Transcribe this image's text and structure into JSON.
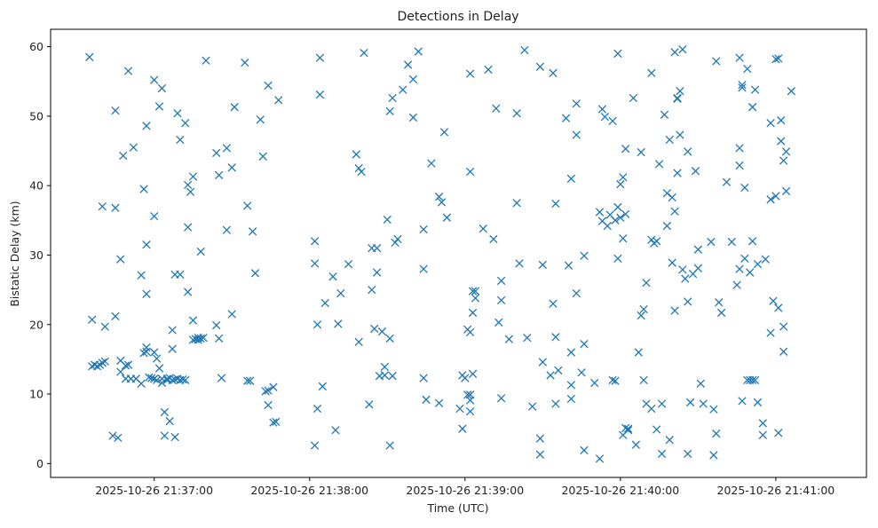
{
  "chart_data": {
    "type": "scatter",
    "title": "Detections in Delay",
    "xlabel": "Time (UTC)",
    "ylabel": "Bistatic Delay (km)",
    "marker": "x",
    "marker_color": "#1f77b4",
    "grid": false,
    "x_unit": "UTC time",
    "xlim": [
      "2025-10-26 21:36:20",
      "2025-10-26 21:41:35"
    ],
    "ylim": [
      -2,
      62.5
    ],
    "xticks": [
      "2025-10-26 21:37:00",
      "2025-10-26 21:38:00",
      "2025-10-26 21:39:00",
      "2025-10-26 21:40:00",
      "2025-10-26 21:41:00"
    ],
    "yticks": [
      0,
      10,
      20,
      30,
      40,
      50,
      60
    ],
    "points": [
      [
        "21:36:35",
        58.5
      ],
      [
        "21:36:36",
        14.0
      ],
      [
        "21:36:36",
        20.7
      ],
      [
        "21:36:37",
        14.2
      ],
      [
        "21:36:38",
        14.0
      ],
      [
        "21:36:39",
        14.2
      ],
      [
        "21:36:40",
        37.0
      ],
      [
        "21:36:40",
        14.5
      ],
      [
        "21:36:41",
        14.7
      ],
      [
        "21:36:41",
        19.7
      ],
      [
        "21:36:44",
        4.0
      ],
      [
        "21:36:45",
        21.2
      ],
      [
        "21:36:45",
        50.8
      ],
      [
        "21:36:45",
        36.8
      ],
      [
        "21:36:46",
        3.7
      ],
      [
        "21:36:47",
        14.8
      ],
      [
        "21:36:47",
        13.2
      ],
      [
        "21:36:47",
        29.4
      ],
      [
        "21:36:48",
        44.3
      ],
      [
        "21:36:49",
        14.1
      ],
      [
        "21:36:49",
        12.2
      ],
      [
        "21:36:50",
        14.2
      ],
      [
        "21:36:50",
        56.5
      ],
      [
        "21:36:51",
        12.2
      ],
      [
        "21:36:52",
        45.5
      ],
      [
        "21:36:53",
        12.2
      ],
      [
        "21:36:55",
        27.1
      ],
      [
        "21:36:55",
        11.5
      ],
      [
        "21:36:56",
        39.5
      ],
      [
        "21:36:56",
        15.9
      ],
      [
        "21:36:57",
        16.7
      ],
      [
        "21:36:57",
        16.1
      ],
      [
        "21:36:57",
        48.6
      ],
      [
        "21:36:57",
        31.5
      ],
      [
        "21:36:57",
        24.4
      ],
      [
        "21:36:58",
        12.4
      ],
      [
        "21:36:59",
        12.3
      ],
      [
        "21:37:00",
        12.2
      ],
      [
        "21:37:00",
        16.0
      ],
      [
        "21:37:00",
        35.6
      ],
      [
        "21:37:00",
        55.2
      ],
      [
        "21:37:01",
        12.0
      ],
      [
        "21:37:01",
        15.1
      ],
      [
        "21:37:02",
        51.4
      ],
      [
        "21:37:02",
        13.7
      ],
      [
        "21:37:03",
        54.0
      ],
      [
        "21:37:03",
        12.2
      ],
      [
        "21:37:03",
        11.6
      ],
      [
        "21:37:04",
        4.0
      ],
      [
        "21:37:04",
        7.4
      ],
      [
        "21:37:05",
        12.0
      ],
      [
        "21:37:05",
        12.2
      ],
      [
        "21:37:06",
        6.1
      ],
      [
        "21:37:06",
        12.3
      ],
      [
        "21:37:07",
        12.0
      ],
      [
        "21:37:07",
        16.5
      ],
      [
        "21:37:07",
        19.2
      ],
      [
        "21:37:08",
        12.1
      ],
      [
        "21:37:08",
        3.8
      ],
      [
        "21:37:08",
        27.2
      ],
      [
        "21:37:09",
        12.2
      ],
      [
        "21:37:09",
        50.4
      ],
      [
        "21:37:10",
        12.0
      ],
      [
        "21:37:10",
        46.6
      ],
      [
        "21:37:10",
        27.2
      ],
      [
        "21:37:11",
        12.1
      ],
      [
        "21:37:12",
        12.0
      ],
      [
        "21:37:12",
        49.0
      ],
      [
        "21:37:13",
        24.7
      ],
      [
        "21:37:13",
        34.0
      ],
      [
        "21:37:13",
        40.1
      ],
      [
        "21:37:14",
        39.1
      ],
      [
        "21:37:15",
        17.8
      ],
      [
        "21:37:15",
        20.6
      ],
      [
        "21:37:15",
        41.3
      ],
      [
        "21:37:16",
        17.9
      ],
      [
        "21:37:17",
        17.8
      ],
      [
        "21:37:17",
        18.1
      ],
      [
        "21:37:18",
        18.0
      ],
      [
        "21:37:18",
        30.5
      ],
      [
        "21:37:19",
        18.1
      ],
      [
        "21:37:20",
        58.0
      ],
      [
        "21:37:24",
        19.9
      ],
      [
        "21:37:24",
        44.7
      ],
      [
        "21:37:25",
        41.5
      ],
      [
        "21:37:25",
        18.0
      ],
      [
        "21:37:26",
        12.3
      ],
      [
        "21:37:28",
        45.4
      ],
      [
        "21:37:28",
        33.6
      ],
      [
        "21:37:30",
        42.6
      ],
      [
        "21:37:30",
        21.5
      ],
      [
        "21:37:31",
        51.3
      ],
      [
        "21:37:35",
        57.7
      ],
      [
        "21:37:36",
        37.1
      ],
      [
        "21:37:36",
        11.9
      ],
      [
        "21:37:37",
        11.9
      ],
      [
        "21:37:38",
        33.4
      ],
      [
        "21:37:39",
        27.4
      ],
      [
        "21:37:41",
        49.5
      ],
      [
        "21:37:42",
        44.2
      ],
      [
        "21:37:43",
        10.4
      ],
      [
        "21:37:44",
        54.4
      ],
      [
        "21:37:44",
        10.5
      ],
      [
        "21:37:44",
        8.4
      ],
      [
        "21:37:46",
        11.0
      ],
      [
        "21:37:46",
        5.9
      ],
      [
        "21:37:47",
        6.0
      ],
      [
        "21:37:48",
        52.3
      ],
      [
        "21:38:02",
        32.0
      ],
      [
        "21:38:02",
        28.8
      ],
      [
        "21:38:02",
        2.6
      ],
      [
        "21:38:03",
        20.0
      ],
      [
        "21:38:03",
        7.9
      ],
      [
        "21:38:04",
        58.4
      ],
      [
        "21:38:04",
        53.1
      ],
      [
        "21:38:05",
        11.1
      ],
      [
        "21:38:06",
        23.1
      ],
      [
        "21:38:09",
        26.9
      ],
      [
        "21:38:10",
        4.8
      ],
      [
        "21:38:11",
        20.1
      ],
      [
        "21:38:12",
        24.5
      ],
      [
        "21:38:15",
        28.7
      ],
      [
        "21:38:18",
        44.5
      ],
      [
        "21:38:19",
        17.5
      ],
      [
        "21:38:19",
        42.5
      ],
      [
        "21:38:20",
        42.0
      ],
      [
        "21:38:21",
        59.1
      ],
      [
        "21:38:23",
        8.5
      ],
      [
        "21:38:24",
        25.0
      ],
      [
        "21:38:24",
        31.0
      ],
      [
        "21:38:25",
        19.4
      ],
      [
        "21:38:26",
        31.0
      ],
      [
        "21:38:26",
        27.5
      ],
      [
        "21:38:27",
        12.6
      ],
      [
        "21:38:28",
        19.0
      ],
      [
        "21:38:29",
        13.9
      ],
      [
        "21:38:29",
        12.7
      ],
      [
        "21:38:30",
        35.1
      ],
      [
        "21:38:31",
        50.7
      ],
      [
        "21:38:31",
        18.0
      ],
      [
        "21:38:31",
        2.6
      ],
      [
        "21:38:32",
        12.6
      ],
      [
        "21:38:32",
        52.6
      ],
      [
        "21:38:33",
        31.8
      ],
      [
        "21:38:34",
        32.3
      ],
      [
        "21:38:36",
        53.8
      ],
      [
        "21:38:38",
        57.4
      ],
      [
        "21:38:40",
        55.3
      ],
      [
        "21:38:40",
        49.8
      ],
      [
        "21:38:42",
        59.3
      ],
      [
        "21:38:44",
        12.3
      ],
      [
        "21:38:44",
        33.7
      ],
      [
        "21:38:44",
        28.0
      ],
      [
        "21:38:45",
        9.2
      ],
      [
        "21:38:47",
        43.2
      ],
      [
        "21:38:50",
        38.4
      ],
      [
        "21:38:50",
        8.7
      ],
      [
        "21:38:51",
        37.6
      ],
      [
        "21:38:52",
        47.7
      ],
      [
        "21:38:53",
        35.4
      ],
      [
        "21:38:58",
        7.9
      ],
      [
        "21:38:59",
        12.7
      ],
      [
        "21:38:59",
        5.0
      ],
      [
        "21:39:00",
        12.3
      ],
      [
        "21:39:01",
        19.3
      ],
      [
        "21:39:01",
        9.9
      ],
      [
        "21:39:02",
        42.0
      ],
      [
        "21:39:02",
        18.9
      ],
      [
        "21:39:02",
        9.1
      ],
      [
        "21:39:02",
        7.5
      ],
      [
        "21:39:02",
        9.9
      ],
      [
        "21:39:02",
        56.1
      ],
      [
        "21:39:03",
        12.9
      ],
      [
        "21:39:03",
        24.8
      ],
      [
        "21:39:03",
        21.7
      ],
      [
        "21:39:04",
        23.8
      ],
      [
        "21:39:04",
        24.8
      ],
      [
        "21:39:07",
        33.8
      ],
      [
        "21:39:09",
        56.7
      ],
      [
        "21:39:11",
        32.3
      ],
      [
        "21:39:12",
        51.1
      ],
      [
        "21:39:13",
        20.3
      ],
      [
        "21:39:14",
        23.5
      ],
      [
        "21:39:14",
        26.3
      ],
      [
        "21:39:14",
        9.4
      ],
      [
        "21:39:17",
        17.9
      ],
      [
        "21:39:20",
        37.5
      ],
      [
        "21:39:20",
        50.4
      ],
      [
        "21:39:21",
        28.8
      ],
      [
        "21:39:23",
        59.5
      ],
      [
        "21:39:24",
        18.1
      ],
      [
        "21:39:26",
        8.2
      ],
      [
        "21:39:29",
        3.6
      ],
      [
        "21:39:29",
        1.3
      ],
      [
        "21:39:29",
        57.1
      ],
      [
        "21:39:30",
        28.6
      ],
      [
        "21:39:30",
        14.6
      ],
      [
        "21:39:33",
        12.7
      ],
      [
        "21:39:34",
        56.2
      ],
      [
        "21:39:34",
        23.0
      ],
      [
        "21:39:35",
        37.4
      ],
      [
        "21:39:35",
        8.6
      ],
      [
        "21:39:35",
        18.2
      ],
      [
        "21:39:36",
        13.4
      ],
      [
        "21:39:39",
        49.7
      ],
      [
        "21:39:40",
        28.5
      ],
      [
        "21:39:41",
        11.3
      ],
      [
        "21:39:41",
        16.0
      ],
      [
        "21:39:41",
        9.3
      ],
      [
        "21:39:41",
        41.0
      ],
      [
        "21:39:43",
        51.8
      ],
      [
        "21:39:43",
        47.3
      ],
      [
        "21:39:43",
        24.5
      ],
      [
        "21:39:45",
        13.1
      ],
      [
        "21:39:46",
        17.2
      ],
      [
        "21:39:46",
        29.9
      ],
      [
        "21:39:46",
        1.9
      ],
      [
        "21:39:50",
        11.6
      ],
      [
        "21:39:52",
        0.7
      ],
      [
        "21:39:52",
        36.2
      ],
      [
        "21:39:53",
        51.0
      ],
      [
        "21:39:53",
        34.9
      ],
      [
        "21:39:54",
        49.9
      ],
      [
        "21:39:55",
        34.2
      ],
      [
        "21:39:56",
        35.8
      ],
      [
        "21:39:57",
        12.0
      ],
      [
        "21:39:57",
        49.3
      ],
      [
        "21:39:58",
        11.9
      ],
      [
        "21:39:58",
        35.0
      ],
      [
        "21:39:59",
        36.9
      ],
      [
        "21:39:59",
        59.0
      ],
      [
        "21:39:59",
        29.5
      ],
      [
        "21:40:00",
        35.4
      ],
      [
        "21:40:00",
        40.2
      ],
      [
        "21:40:01",
        32.4
      ],
      [
        "21:40:01",
        41.2
      ],
      [
        "21:40:01",
        4.1
      ],
      [
        "21:40:02",
        45.3
      ],
      [
        "21:40:02",
        5.1
      ],
      [
        "21:40:02",
        35.9
      ],
      [
        "21:40:03",
        4.8
      ],
      [
        "21:40:03",
        5.0
      ],
      [
        "21:40:05",
        52.6
      ],
      [
        "21:40:06",
        2.7
      ],
      [
        "21:40:07",
        16.0
      ],
      [
        "21:40:08",
        44.8
      ],
      [
        "21:40:08",
        21.3
      ],
      [
        "21:40:09",
        12.0
      ],
      [
        "21:40:09",
        22.2
      ],
      [
        "21:40:10",
        26.0
      ],
      [
        "21:40:10",
        8.6
      ],
      [
        "21:40:12",
        56.2
      ],
      [
        "21:40:12",
        32.2
      ],
      [
        "21:40:12",
        7.9
      ],
      [
        "21:40:13",
        31.7
      ],
      [
        "21:40:14",
        32.0
      ],
      [
        "21:40:14",
        4.9
      ],
      [
        "21:40:15",
        43.1
      ],
      [
        "21:40:16",
        8.6
      ],
      [
        "21:40:16",
        1.4
      ],
      [
        "21:40:17",
        50.2
      ],
      [
        "21:40:18",
        34.2
      ],
      [
        "21:40:18",
        38.9
      ],
      [
        "21:40:19",
        46.6
      ],
      [
        "21:40:19",
        3.4
      ],
      [
        "21:40:20",
        38.3
      ],
      [
        "21:40:20",
        28.9
      ],
      [
        "21:40:21",
        22.0
      ],
      [
        "21:40:21",
        59.2
      ],
      [
        "21:40:21",
        36.3
      ],
      [
        "21:40:22",
        52.5
      ],
      [
        "21:40:22",
        52.6
      ],
      [
        "21:40:22",
        41.8
      ],
      [
        "21:40:23",
        53.6
      ],
      [
        "21:40:23",
        47.3
      ],
      [
        "21:40:24",
        59.6
      ],
      [
        "21:40:24",
        27.9
      ],
      [
        "21:40:25",
        26.6
      ],
      [
        "21:40:26",
        23.3
      ],
      [
        "21:40:26",
        1.4
      ],
      [
        "21:40:26",
        44.9
      ],
      [
        "21:40:27",
        8.8
      ],
      [
        "21:40:28",
        27.3
      ],
      [
        "21:40:29",
        42.1
      ],
      [
        "21:40:30",
        30.8
      ],
      [
        "21:40:30",
        28.1
      ],
      [
        "21:40:31",
        11.5
      ],
      [
        "21:40:32",
        8.6
      ],
      [
        "21:40:35",
        31.9
      ],
      [
        "21:40:36",
        1.2
      ],
      [
        "21:40:36",
        7.8
      ],
      [
        "21:40:37",
        4.3
      ],
      [
        "21:40:37",
        57.9
      ],
      [
        "21:40:38",
        23.2
      ],
      [
        "21:40:39",
        21.7
      ],
      [
        "21:40:41",
        40.5
      ],
      [
        "21:40:43",
        31.9
      ],
      [
        "21:40:45",
        25.7
      ],
      [
        "21:40:46",
        28.0
      ],
      [
        "21:40:46",
        42.9
      ],
      [
        "21:40:46",
        45.4
      ],
      [
        "21:40:46",
        58.4
      ],
      [
        "21:40:47",
        54.1
      ],
      [
        "21:40:47",
        54.5
      ],
      [
        "21:40:47",
        9.0
      ],
      [
        "21:40:48",
        29.5
      ],
      [
        "21:40:48",
        39.7
      ],
      [
        "21:40:49",
        56.8
      ],
      [
        "21:40:49",
        12.0
      ],
      [
        "21:40:50",
        12.0
      ],
      [
        "21:40:50",
        27.5
      ],
      [
        "21:40:51",
        12.0
      ],
      [
        "21:40:51",
        32.0
      ],
      [
        "21:40:51",
        51.3
      ],
      [
        "21:40:52",
        12.0
      ],
      [
        "21:40:52",
        53.8
      ],
      [
        "21:40:53",
        28.7
      ],
      [
        "21:40:53",
        8.8
      ],
      [
        "21:40:55",
        5.8
      ],
      [
        "21:40:55",
        4.1
      ],
      [
        "21:40:56",
        29.4
      ],
      [
        "21:40:58",
        18.8
      ],
      [
        "21:40:58",
        49.0
      ],
      [
        "21:40:58",
        38.0
      ],
      [
        "21:40:59",
        23.4
      ],
      [
        "21:41:00",
        38.5
      ],
      [
        "21:41:00",
        58.2
      ],
      [
        "21:41:01",
        58.3
      ],
      [
        "21:41:01",
        4.4
      ],
      [
        "21:41:01",
        22.4
      ],
      [
        "21:41:02",
        46.4
      ],
      [
        "21:41:02",
        49.4
      ],
      [
        "21:41:03",
        43.6
      ],
      [
        "21:41:03",
        19.7
      ],
      [
        "21:41:03",
        16.1
      ],
      [
        "21:41:04",
        44.9
      ],
      [
        "21:41:04",
        39.2
      ],
      [
        "21:41:06",
        53.6
      ]
    ]
  }
}
